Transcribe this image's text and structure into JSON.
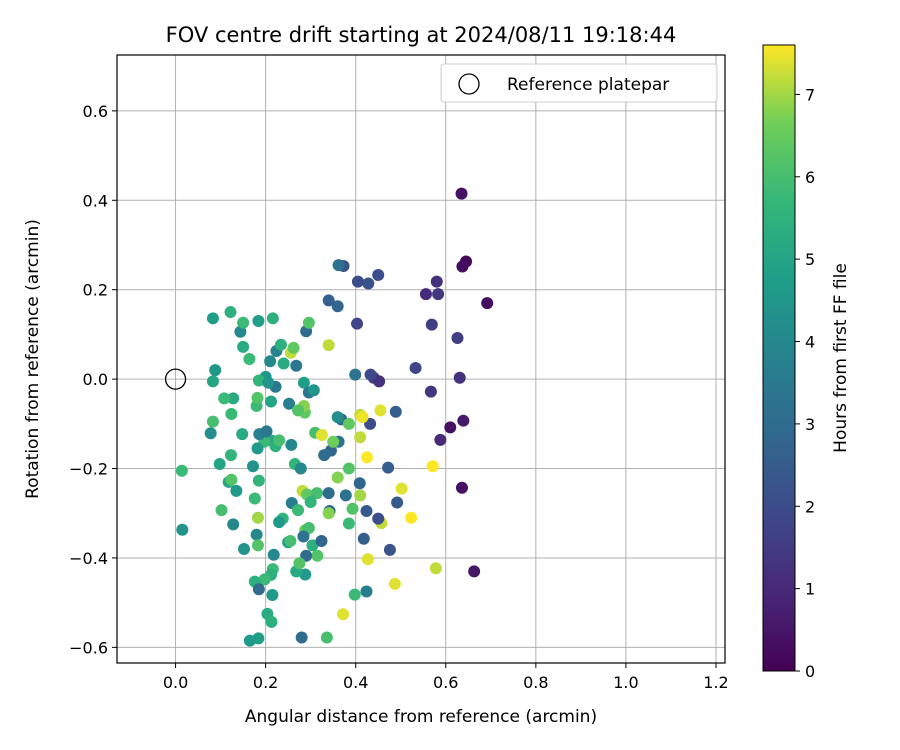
{
  "chart_data": {
    "type": "scatter",
    "title": "FOV centre drift starting at 2024/08/11 19:18:44",
    "xlabel": "Angular distance from reference (arcmin)",
    "ylabel": "Rotation from reference (arcmin)",
    "xlim": [
      -0.13,
      1.22
    ],
    "ylim": [
      -0.635,
      0.725
    ],
    "xticks": [
      0.0,
      0.2,
      0.4,
      0.6,
      0.8,
      1.0,
      1.2
    ],
    "xtick_labels": [
      "0.0",
      "0.2",
      "0.4",
      "0.6",
      "0.8",
      "1.0",
      "1.2"
    ],
    "yticks": [
      -0.6,
      -0.4,
      -0.2,
      0.0,
      0.2,
      0.4,
      0.6
    ],
    "ytick_labels": [
      "−0.6",
      "−0.4",
      "−0.2",
      "0.0",
      "0.2",
      "0.4",
      "0.6"
    ],
    "grid": true,
    "legend": {
      "placement": "top-right",
      "entries": [
        "Reference platepar"
      ]
    },
    "reference_point": {
      "x": 0.0,
      "y": 0.0
    },
    "colorbar": {
      "label": "Hours from first FF file",
      "range": [
        0,
        7.6
      ],
      "ticks": [
        0,
        1,
        2,
        3,
        4,
        5,
        6,
        7
      ],
      "tick_labels": [
        "0",
        "1",
        "2",
        "3",
        "4",
        "5",
        "6",
        "7"
      ],
      "colormap": "viridis"
    },
    "points": [
      [
        0.635,
        0.415,
        0.4
      ],
      [
        0.645,
        0.263,
        0.2
      ],
      [
        0.637,
        0.252,
        0.3
      ],
      [
        0.692,
        0.17,
        0.3
      ],
      [
        0.58,
        0.218,
        1.2
      ],
      [
        0.583,
        0.19,
        1.4
      ],
      [
        0.556,
        0.19,
        1.0
      ],
      [
        0.626,
        0.092,
        1.6
      ],
      [
        0.569,
        0.122,
        1.6
      ],
      [
        0.631,
        0.003,
        1.2
      ],
      [
        0.639,
        -0.093,
        0.6
      ],
      [
        0.588,
        -0.136,
        1.0
      ],
      [
        0.61,
        -0.108,
        0.4
      ],
      [
        0.636,
        -0.243,
        0.4
      ],
      [
        0.663,
        -0.43,
        0.5
      ],
      [
        0.567,
        -0.028,
        1.4
      ],
      [
        0.533,
        0.025,
        1.8
      ],
      [
        0.45,
        0.233,
        2.0
      ],
      [
        0.428,
        0.214,
        2.2
      ],
      [
        0.405,
        0.218,
        2.0
      ],
      [
        0.373,
        0.253,
        2.2
      ],
      [
        0.362,
        0.255,
        3.2
      ],
      [
        0.36,
        0.163,
        2.8
      ],
      [
        0.34,
        0.176,
        2.6
      ],
      [
        0.403,
        0.124,
        1.8
      ],
      [
        0.44,
        0.003,
        1.4
      ],
      [
        0.452,
        -0.005,
        1.2
      ],
      [
        0.433,
        0.01,
        1.9
      ],
      [
        0.399,
        0.01,
        3.2
      ],
      [
        0.489,
        -0.073,
        2.6
      ],
      [
        0.432,
        -0.1,
        2.0
      ],
      [
        0.368,
        -0.09,
        2.8
      ],
      [
        0.345,
        -0.16,
        2.8
      ],
      [
        0.33,
        -0.17,
        3.0
      ],
      [
        0.362,
        -0.14,
        3.2
      ],
      [
        0.385,
        -0.2,
        6.2
      ],
      [
        0.41,
        -0.08,
        7.2
      ],
      [
        0.415,
        -0.085,
        7.5
      ],
      [
        0.455,
        -0.07,
        7.4
      ],
      [
        0.41,
        -0.13,
        7.2
      ],
      [
        0.425,
        -0.175,
        7.6
      ],
      [
        0.472,
        -0.198,
        2.6
      ],
      [
        0.409,
        -0.233,
        2.8
      ],
      [
        0.41,
        -0.26,
        7.0
      ],
      [
        0.502,
        -0.245,
        7.4
      ],
      [
        0.492,
        -0.276,
        2.4
      ],
      [
        0.457,
        -0.322,
        7.2
      ],
      [
        0.424,
        -0.295,
        2.4
      ],
      [
        0.45,
        -0.312,
        2.0
      ],
      [
        0.523,
        -0.31,
        7.6
      ],
      [
        0.571,
        -0.195,
        7.6
      ],
      [
        0.418,
        -0.357,
        2.6
      ],
      [
        0.476,
        -0.382,
        2.2
      ],
      [
        0.427,
        -0.403,
        7.4
      ],
      [
        0.487,
        -0.458,
        7.4
      ],
      [
        0.578,
        -0.423,
        7.2
      ],
      [
        0.424,
        -0.475,
        3.6
      ],
      [
        0.398,
        -0.482,
        5.8
      ],
      [
        0.372,
        -0.526,
        7.4
      ],
      [
        0.336,
        -0.578,
        6.0
      ],
      [
        0.28,
        -0.578,
        3.0
      ],
      [
        0.34,
        0.076,
        7.2
      ],
      [
        0.29,
        0.107,
        3.0
      ],
      [
        0.296,
        0.126,
        6.2
      ],
      [
        0.256,
        0.059,
        7.2
      ],
      [
        0.224,
        0.063,
        3.8
      ],
      [
        0.234,
        0.077,
        5.4
      ],
      [
        0.262,
        0.07,
        6.4
      ],
      [
        0.268,
        0.03,
        3.4
      ],
      [
        0.24,
        0.035,
        5.2
      ],
      [
        0.21,
        0.04,
        4.0
      ],
      [
        0.2,
        0.005,
        4.5
      ],
      [
        0.185,
        -0.003,
        5.6
      ],
      [
        0.222,
        -0.017,
        3.4
      ],
      [
        0.206,
        -0.008,
        4.4
      ],
      [
        0.285,
        -0.008,
        4.8
      ],
      [
        0.296,
        -0.03,
        3.4
      ],
      [
        0.307,
        -0.025,
        4.4
      ],
      [
        0.252,
        -0.055,
        3.6
      ],
      [
        0.212,
        -0.05,
        5.0
      ],
      [
        0.18,
        -0.06,
        5.8
      ],
      [
        0.182,
        -0.042,
        6.2
      ],
      [
        0.164,
        0.045,
        5.8
      ],
      [
        0.15,
        0.072,
        5.2
      ],
      [
        0.144,
        0.106,
        4.0
      ],
      [
        0.15,
        0.126,
        5.8
      ],
      [
        0.122,
        0.15,
        5.4
      ],
      [
        0.184,
        0.13,
        4.8
      ],
      [
        0.216,
        0.136,
        5.4
      ],
      [
        0.083,
        0.136,
        4.8
      ],
      [
        0.088,
        0.02,
        4.5
      ],
      [
        0.083,
        -0.005,
        5.0
      ],
      [
        0.128,
        -0.043,
        5.2
      ],
      [
        0.108,
        -0.043,
        5.8
      ],
      [
        0.124,
        -0.078,
        5.8
      ],
      [
        0.078,
        -0.121,
        4.2
      ],
      [
        0.083,
        -0.095,
        6.0
      ],
      [
        0.148,
        -0.123,
        5.2
      ],
      [
        0.098,
        -0.19,
        5.0
      ],
      [
        0.123,
        -0.17,
        5.6
      ],
      [
        0.118,
        -0.23,
        5.0
      ],
      [
        0.135,
        -0.25,
        4.6
      ],
      [
        0.124,
        -0.225,
        6.2
      ],
      [
        0.128,
        -0.325,
        4.0
      ],
      [
        0.102,
        -0.293,
        6.0
      ],
      [
        0.185,
        -0.227,
        5.6
      ],
      [
        0.176,
        -0.267,
        5.8
      ],
      [
        0.183,
        -0.31,
        7.0
      ],
      [
        0.214,
        -0.138,
        5.2
      ],
      [
        0.222,
        -0.15,
        5.4
      ],
      [
        0.23,
        -0.137,
        6.0
      ],
      [
        0.197,
        -0.14,
        5.8
      ],
      [
        0.186,
        -0.123,
        3.8
      ],
      [
        0.202,
        -0.117,
        3.4
      ],
      [
        0.182,
        -0.155,
        4.6
      ],
      [
        0.172,
        -0.195,
        4.4
      ],
      [
        0.257,
        -0.147,
        4.0
      ],
      [
        0.265,
        -0.19,
        5.6
      ],
      [
        0.278,
        -0.2,
        4.0
      ],
      [
        0.282,
        -0.25,
        7.2
      ],
      [
        0.292,
        -0.258,
        6.4
      ],
      [
        0.314,
        -0.255,
        6.0
      ],
      [
        0.3,
        -0.275,
        5.6
      ],
      [
        0.31,
        -0.12,
        6.0
      ],
      [
        0.325,
        -0.125,
        7.4
      ],
      [
        0.287,
        -0.075,
        6.4
      ],
      [
        0.285,
        -0.06,
        6.8
      ],
      [
        0.272,
        -0.07,
        6.2
      ],
      [
        0.258,
        -0.277,
        3.6
      ],
      [
        0.272,
        -0.293,
        5.8
      ],
      [
        0.238,
        -0.312,
        5.6
      ],
      [
        0.23,
        -0.32,
        4.6
      ],
      [
        0.25,
        -0.365,
        4.8
      ],
      [
        0.255,
        -0.362,
        6.0
      ],
      [
        0.288,
        -0.338,
        6.4
      ],
      [
        0.296,
        -0.333,
        6.0
      ],
      [
        0.284,
        -0.352,
        3.2
      ],
      [
        0.304,
        -0.372,
        5.4
      ],
      [
        0.324,
        -0.362,
        2.8
      ],
      [
        0.315,
        -0.395,
        6.2
      ],
      [
        0.29,
        -0.395,
        3.0
      ],
      [
        0.288,
        -0.437,
        4.6
      ],
      [
        0.268,
        -0.43,
        5.2
      ],
      [
        0.275,
        -0.412,
        6.2
      ],
      [
        0.218,
        -0.393,
        4.0
      ],
      [
        0.216,
        -0.425,
        5.8
      ],
      [
        0.212,
        -0.438,
        5.4
      ],
      [
        0.198,
        -0.448,
        5.8
      ],
      [
        0.176,
        -0.453,
        5.4
      ],
      [
        0.185,
        -0.47,
        3.0
      ],
      [
        0.215,
        -0.483,
        4.6
      ],
      [
        0.204,
        -0.525,
        5.2
      ],
      [
        0.213,
        -0.543,
        5.4
      ],
      [
        0.184,
        -0.58,
        4.8
      ],
      [
        0.165,
        -0.585,
        4.6
      ],
      [
        0.18,
        -0.348,
        4.0
      ],
      [
        0.183,
        -0.372,
        6.2
      ],
      [
        0.152,
        -0.38,
        4.4
      ],
      [
        0.014,
        -0.205,
        5.8
      ],
      [
        0.015,
        -0.337,
        4.4
      ],
      [
        0.36,
        -0.085,
        4.2
      ],
      [
        0.385,
        -0.1,
        6.4
      ],
      [
        0.35,
        -0.14,
        6.6
      ],
      [
        0.34,
        -0.255,
        3.0
      ],
      [
        0.342,
        -0.295,
        3.0
      ],
      [
        0.34,
        -0.3,
        6.8
      ],
      [
        0.378,
        -0.26,
        3.2
      ],
      [
        0.36,
        -0.22,
        6.8
      ],
      [
        0.393,
        -0.29,
        6.2
      ],
      [
        0.385,
        -0.323,
        5.8
      ]
    ]
  }
}
